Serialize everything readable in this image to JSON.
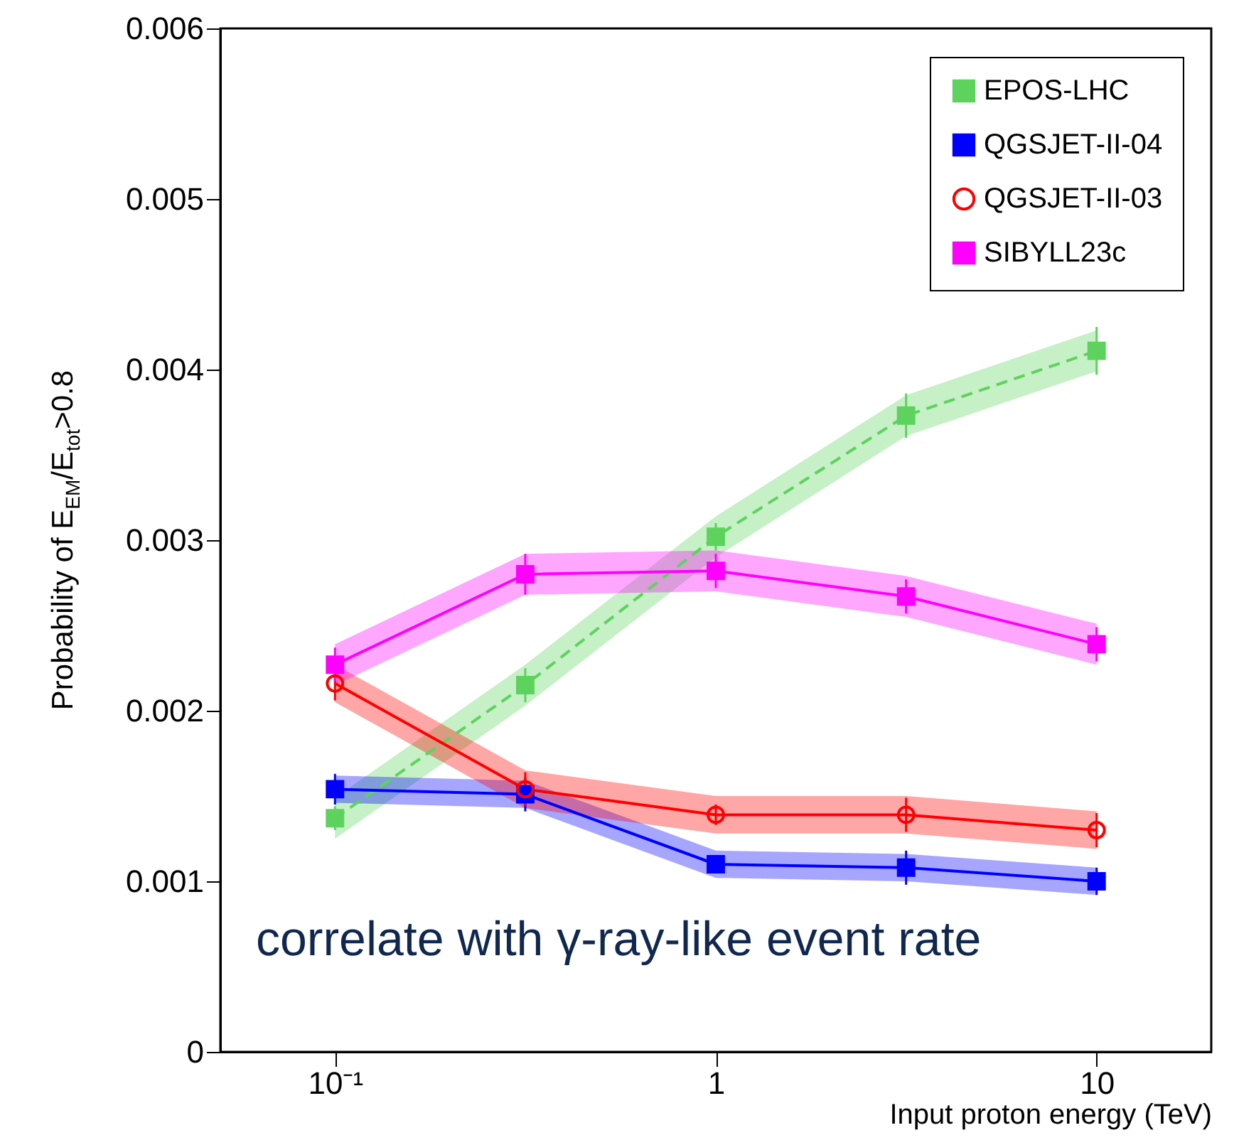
{
  "chart_data": {
    "type": "line",
    "ylabel": "Probability of E$_{EM}$/E$_{tot}$>0.8",
    "xlabel": "Input proton energy (TeV)",
    "annotations": [
      "correlate with γ-ray-like event rate"
    ],
    "x": [
      0.1,
      0.316,
      1,
      3.16,
      10
    ],
    "log": "x",
    "xlim": [
      0.05,
      20
    ],
    "xticks": [
      {
        "value": 0.1,
        "label": "10⁻¹"
      },
      1,
      10
    ],
    "ylim": [
      0,
      0.006
    ],
    "yticks": [
      0,
      0.001,
      0.002,
      0.003,
      0.004,
      0.005,
      0.006
    ],
    "grid": false,
    "legend": "top right",
    "series": [
      {
        "name": "EPOS-LHC",
        "color": "#5dd35d",
        "marker": "square",
        "line_style": "dashed",
        "values": [
          0.00137,
          0.00215,
          0.00302,
          0.00373,
          0.00411
        ],
        "errors": [
          7e-05,
          0.0001,
          8e-05,
          0.00013,
          0.00014
        ],
        "lower": [
          0.00125,
          0.00203,
          0.0029,
          0.00361,
          0.00399
        ],
        "upper": [
          0.00149,
          0.00227,
          0.00314,
          0.00385,
          0.00423
        ]
      },
      {
        "name": "QGSJET-II-04",
        "color": "#0000ff",
        "marker": "square",
        "line_style": "solid",
        "values": [
          0.00154,
          0.00151,
          0.0011,
          0.00108,
          0.001
        ],
        "errors": [
          9e-05,
          0.0001,
          5e-05,
          0.0001,
          8e-05
        ],
        "lower": [
          0.00146,
          0.00143,
          0.00102,
          0.001,
          0.00092
        ],
        "upper": [
          0.00162,
          0.00159,
          0.00118,
          0.00116,
          0.00108
        ]
      },
      {
        "name": "QGSJET-II-03",
        "color": "#ff0000",
        "marker": "circle",
        "line_style": "solid",
        "values": [
          0.00216,
          0.00154,
          0.00139,
          0.00139,
          0.0013
        ],
        "errors": [
          0.0001,
          0.0001,
          6e-05,
          0.0001,
          0.0001
        ],
        "lower": [
          0.00205,
          0.00143,
          0.00128,
          0.00128,
          0.00119
        ],
        "upper": [
          0.00227,
          0.00165,
          0.0015,
          0.0015,
          0.00141
        ]
      },
      {
        "name": "SIBYLL23c",
        "color": "#ff00ff",
        "marker": "square",
        "line_style": "solid",
        "values": [
          0.00227,
          0.0028,
          0.00282,
          0.00267,
          0.00239
        ],
        "errors": [
          0.0001,
          0.00012,
          0.0001,
          0.0001,
          0.0001
        ],
        "lower": [
          0.00215,
          0.00268,
          0.0027,
          0.00255,
          0.00227
        ],
        "upper": [
          0.00239,
          0.00292,
          0.00294,
          0.00279,
          0.00251
        ]
      }
    ]
  }
}
